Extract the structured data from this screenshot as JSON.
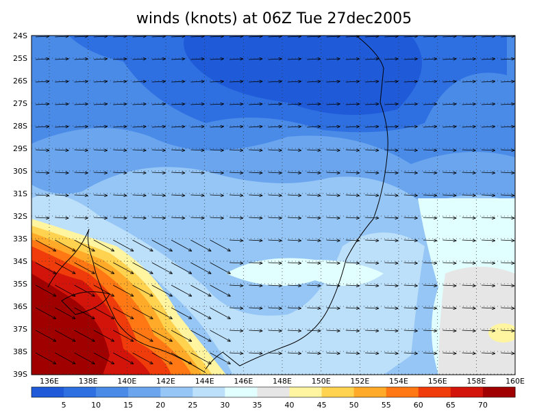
{
  "title": "winds (knots) at 06Z Tue 27dec2005",
  "map": {
    "lat_labels": [
      "24S",
      "25S",
      "26S",
      "27S",
      "28S",
      "29S",
      "30S",
      "31S",
      "32S",
      "33S",
      "34S",
      "35S",
      "36S",
      "37S",
      "38S",
      "39S"
    ],
    "lon_labels": [
      "136E",
      "138E",
      "140E",
      "142E",
      "144E",
      "146E",
      "148E",
      "150E",
      "152E",
      "154E",
      "156E",
      "158E",
      "160E"
    ]
  },
  "colorbar": {
    "labels": [
      5,
      10,
      15,
      20,
      25,
      30,
      35,
      40,
      45,
      50,
      55,
      60,
      65,
      70
    ],
    "colors": [
      "#1f5bd8",
      "#2e70e2",
      "#4a8be8",
      "#6aa5ee",
      "#96c6f5",
      "#bde0fa",
      "#e1ffff",
      "#e6e6e6",
      "#fff5a0",
      "#ffd250",
      "#ffaa28",
      "#ff7814",
      "#f03c0a",
      "#d2140a",
      "#a00000"
    ]
  }
}
